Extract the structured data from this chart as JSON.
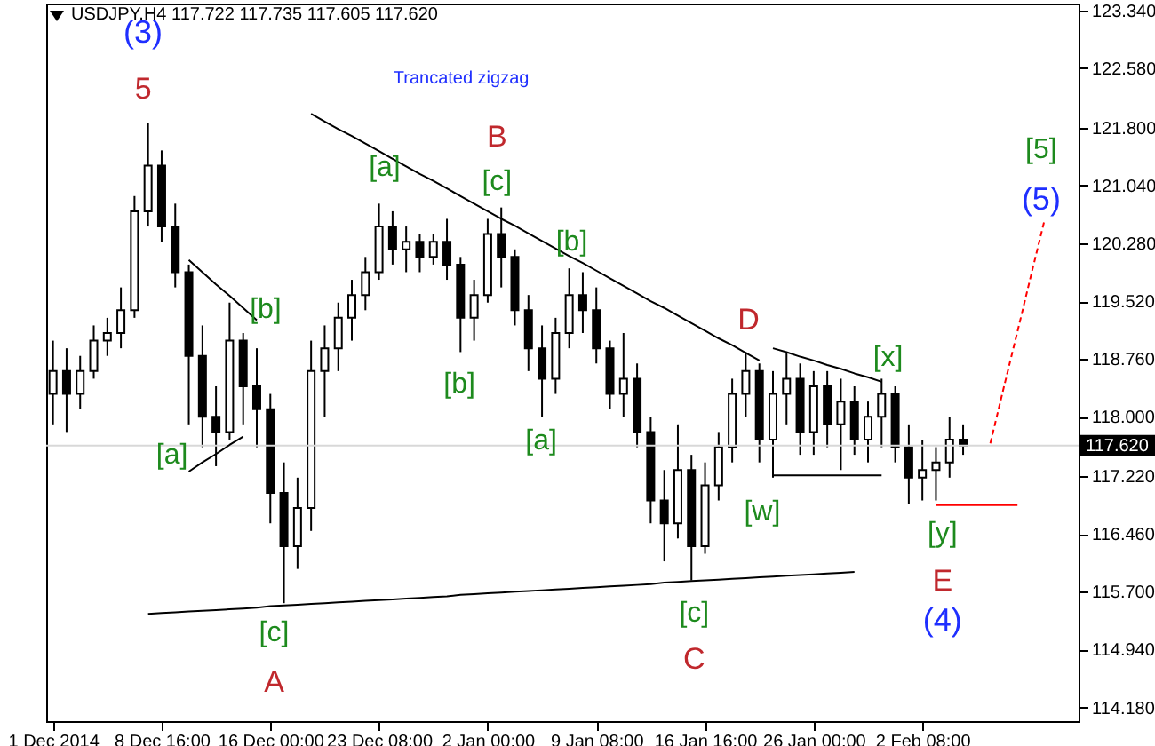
{
  "chart_data": {
    "type": "candlestick",
    "title": "USDJPY,H4 117.722 117.735 117.605 117.620",
    "annotations": [
      "Trancated zigzag",
      "[a]",
      "[b]",
      "[c]",
      "[a]",
      "[c]",
      "[b]",
      "[b]",
      "[a]",
      "[c]",
      "[w]",
      "[x]",
      "[y]",
      "[5]",
      "5",
      "B",
      "A",
      "C",
      "D",
      "E",
      "(3)",
      "(4)",
      "(5)"
    ],
    "categories": [
      "1 Dec 2014",
      null,
      null,
      null,
      null,
      null,
      null,
      null,
      "8 Dec 16:00",
      null,
      null,
      null,
      null,
      null,
      null,
      null,
      "16 Dec 00:00",
      null,
      null,
      null,
      null,
      null,
      null,
      null,
      "23 Dec 08:00",
      null,
      null,
      null,
      null,
      null,
      null,
      null,
      "2 Jan 00:00",
      null,
      null,
      null,
      null,
      null,
      null,
      null,
      "9 Jan 08:00",
      null,
      null,
      null,
      null,
      null,
      null,
      null,
      "16 Jan 16:00",
      null,
      null,
      null,
      null,
      null,
      null,
      null,
      "26 Jan 00:00",
      null,
      null,
      null,
      null,
      null,
      null,
      null,
      "2 Feb 08:00",
      null,
      null,
      null,
      null,
      null,
      null,
      null,
      null,
      null,
      null,
      null
    ],
    "ohlc": [
      [
        118.3,
        119.0,
        117.9,
        118.6
      ],
      [
        118.6,
        118.9,
        117.8,
        118.3
      ],
      [
        118.3,
        118.8,
        118.1,
        118.6
      ],
      [
        118.6,
        119.2,
        118.5,
        119.0
      ],
      [
        119.0,
        119.3,
        118.8,
        119.1
      ],
      [
        119.1,
        119.7,
        118.9,
        119.4
      ],
      [
        119.4,
        120.9,
        119.3,
        120.7
      ],
      [
        120.7,
        121.86,
        120.5,
        121.3
      ],
      [
        121.3,
        121.5,
        120.3,
        120.5
      ],
      [
        120.5,
        120.8,
        119.7,
        119.9
      ],
      [
        119.9,
        120.0,
        117.9,
        118.8
      ],
      [
        118.8,
        119.2,
        117.6,
        118.0
      ],
      [
        118.0,
        118.4,
        117.35,
        117.8
      ],
      [
        117.8,
        119.5,
        117.7,
        119.0
      ],
      [
        119.0,
        119.1,
        117.9,
        118.4
      ],
      [
        118.4,
        118.9,
        117.6,
        118.1
      ],
      [
        118.1,
        118.3,
        116.6,
        117.0
      ],
      [
        117.0,
        117.4,
        115.55,
        116.3
      ],
      [
        116.3,
        117.2,
        116.0,
        116.8
      ],
      [
        116.8,
        119.0,
        116.5,
        118.6
      ],
      [
        118.6,
        119.2,
        118.0,
        118.9
      ],
      [
        118.9,
        119.5,
        118.6,
        119.3
      ],
      [
        119.3,
        119.8,
        119.0,
        119.6
      ],
      [
        119.6,
        120.1,
        119.4,
        119.9
      ],
      [
        119.9,
        120.8,
        119.8,
        120.5
      ],
      [
        120.5,
        120.7,
        120.0,
        120.2
      ],
      [
        120.2,
        120.5,
        119.9,
        120.3
      ],
      [
        120.3,
        120.4,
        119.9,
        120.1
      ],
      [
        120.1,
        120.4,
        120.0,
        120.3
      ],
      [
        120.3,
        120.6,
        119.8,
        120.0
      ],
      [
        120.0,
        120.1,
        118.85,
        119.3
      ],
      [
        119.3,
        119.8,
        119.0,
        119.6
      ],
      [
        119.6,
        120.6,
        119.5,
        120.4
      ],
      [
        120.4,
        120.75,
        119.7,
        120.1
      ],
      [
        120.1,
        120.2,
        119.2,
        119.4
      ],
      [
        119.4,
        119.6,
        118.6,
        118.9
      ],
      [
        118.9,
        119.2,
        118.0,
        118.5
      ],
      [
        118.5,
        119.3,
        118.3,
        119.1
      ],
      [
        119.1,
        119.95,
        118.9,
        119.6
      ],
      [
        119.6,
        119.9,
        119.1,
        119.4
      ],
      [
        119.4,
        119.7,
        118.7,
        118.9
      ],
      [
        118.9,
        119.0,
        118.1,
        118.3
      ],
      [
        118.3,
        119.1,
        118.0,
        118.5
      ],
      [
        118.5,
        118.7,
        117.6,
        117.8
      ],
      [
        117.8,
        118.0,
        116.6,
        116.9
      ],
      [
        116.9,
        117.3,
        116.1,
        116.6
      ],
      [
        116.6,
        117.9,
        116.4,
        117.3
      ],
      [
        117.3,
        117.5,
        115.85,
        116.3
      ],
      [
        116.3,
        117.4,
        116.2,
        117.1
      ],
      [
        117.1,
        117.8,
        116.9,
        117.6
      ],
      [
        117.6,
        118.5,
        117.4,
        118.3
      ],
      [
        118.3,
        118.85,
        118.0,
        118.6
      ],
      [
        118.6,
        118.7,
        117.4,
        117.7
      ],
      [
        117.7,
        118.6,
        117.2,
        118.3
      ],
      [
        118.3,
        118.85,
        117.9,
        118.5
      ],
      [
        118.5,
        118.7,
        117.5,
        117.8
      ],
      [
        117.8,
        118.6,
        117.5,
        118.4
      ],
      [
        118.4,
        118.6,
        117.6,
        117.9
      ],
      [
        117.9,
        118.5,
        117.3,
        118.2
      ],
      [
        118.2,
        118.4,
        117.5,
        117.7
      ],
      [
        117.7,
        118.2,
        117.4,
        118.0
      ],
      [
        118.0,
        118.5,
        117.6,
        118.3
      ],
      [
        118.3,
        118.4,
        117.4,
        117.6
      ],
      [
        117.6,
        117.9,
        116.85,
        117.2
      ],
      [
        117.2,
        117.7,
        116.9,
        117.3
      ],
      [
        117.3,
        117.6,
        116.9,
        117.4
      ],
      [
        117.4,
        118.0,
        117.2,
        117.7
      ],
      [
        117.7,
        117.9,
        117.5,
        117.62
      ],
      null,
      null,
      null,
      null,
      null,
      null,
      null,
      null
    ],
    "ylim": [
      114.0,
      123.43
    ],
    "yticks": [
      {
        "value": 123.34,
        "label": "123.340"
      },
      {
        "value": 122.58,
        "label": "122.580"
      },
      {
        "value": 121.8,
        "label": "121.800"
      },
      {
        "value": 121.04,
        "label": "121.040"
      },
      {
        "value": 120.28,
        "label": "120.280"
      },
      {
        "value": 119.52,
        "label": "119.520"
      },
      {
        "value": 118.76,
        "label": "118.760"
      },
      {
        "value": 118.0,
        "label": "118.000"
      },
      {
        "value": 117.22,
        "label": "117.220"
      },
      {
        "value": 116.46,
        "label": "116.460"
      },
      {
        "value": 115.7,
        "label": "115.700"
      },
      {
        "value": 114.94,
        "label": "114.940"
      },
      {
        "value": 114.18,
        "label": "114.180"
      }
    ],
    "ref_lines": [
      {
        "axis": "y",
        "value": 117.62,
        "label": "117.620",
        "color": "#d8d8d8"
      }
    ],
    "series": [
      {
        "type": "line",
        "color": "#000000",
        "values": [
          null,
          null,
          null,
          null,
          null,
          null,
          null,
          null,
          null,
          null,
          null,
          null,
          null,
          null,
          null,
          null,
          null,
          null,
          null,
          121.98,
          121.88,
          121.78,
          121.69,
          121.59,
          121.49,
          121.39,
          121.29,
          121.19,
          121.1,
          121.0,
          120.9,
          120.8,
          120.7,
          120.6,
          120.51,
          120.41,
          120.31,
          120.21,
          120.11,
          120.02,
          119.92,
          119.82,
          119.72,
          119.62,
          119.52,
          119.43,
          119.33,
          119.23,
          119.13,
          119.03,
          118.94,
          118.84,
          118.74,
          null,
          null,
          null,
          null,
          null,
          null,
          null,
          null,
          null,
          null,
          null,
          null,
          null,
          null,
          null,
          null,
          null,
          null,
          null,
          null,
          null,
          null,
          null
        ]
      },
      {
        "type": "line",
        "color": "#000000",
        "values": [
          null,
          null,
          null,
          null,
          null,
          null,
          null,
          115.41,
          115.42,
          115.43,
          115.44,
          115.45,
          115.46,
          115.47,
          115.48,
          115.49,
          115.51,
          115.52,
          115.53,
          115.54,
          115.55,
          115.56,
          115.57,
          115.58,
          115.59,
          115.6,
          115.61,
          115.62,
          115.63,
          115.64,
          115.66,
          115.67,
          115.68,
          115.69,
          115.7,
          115.71,
          115.72,
          115.73,
          115.74,
          115.75,
          115.76,
          115.77,
          115.78,
          115.79,
          115.8,
          115.82,
          115.83,
          115.84,
          115.85,
          115.86,
          115.87,
          115.88,
          115.89,
          115.9,
          115.91,
          115.92,
          115.93,
          115.94,
          115.95,
          115.96,
          null,
          null,
          null,
          null,
          null,
          null,
          null,
          null,
          null,
          null,
          null,
          null,
          null,
          null,
          null,
          null
        ]
      },
      {
        "type": "line",
        "color": "#000000",
        "values": [
          null,
          null,
          null,
          null,
          null,
          null,
          null,
          null,
          null,
          null,
          120.06,
          119.9,
          119.74,
          119.59,
          119.43,
          119.27,
          null,
          null,
          null,
          null,
          null,
          null,
          null,
          null,
          null,
          null,
          null,
          null,
          null,
          null,
          null,
          null,
          null,
          null,
          null,
          null,
          null,
          null,
          null,
          null,
          null,
          null,
          null,
          null,
          null,
          null,
          null,
          null,
          null,
          null,
          null,
          null,
          null,
          null,
          null,
          null,
          null,
          null,
          null,
          null,
          null,
          null,
          null,
          null,
          null,
          null,
          null,
          null,
          null,
          null,
          null,
          null,
          null,
          null,
          null,
          null
        ]
      },
      {
        "type": "line",
        "color": "#000000",
        "values": [
          null,
          null,
          null,
          null,
          null,
          null,
          null,
          null,
          null,
          null,
          117.28,
          117.4,
          117.51,
          117.63,
          117.74,
          null,
          null,
          null,
          null,
          null,
          null,
          null,
          null,
          null,
          null,
          null,
          null,
          null,
          null,
          null,
          null,
          null,
          null,
          null,
          null,
          null,
          null,
          null,
          null,
          null,
          null,
          null,
          null,
          null,
          null,
          null,
          null,
          null,
          null,
          null,
          null,
          null,
          null,
          null,
          null,
          null,
          null,
          null,
          null,
          null,
          null,
          null,
          null,
          null,
          null,
          null,
          null,
          null,
          null,
          null,
          null,
          null,
          null,
          null,
          null,
          null
        ]
      },
      {
        "type": "line",
        "color": "#000000",
        "values": [
          null,
          null,
          null,
          null,
          null,
          null,
          null,
          null,
          null,
          null,
          null,
          null,
          null,
          null,
          null,
          null,
          null,
          null,
          null,
          null,
          null,
          null,
          null,
          null,
          null,
          null,
          null,
          null,
          null,
          null,
          null,
          null,
          null,
          null,
          null,
          null,
          null,
          null,
          null,
          null,
          null,
          null,
          null,
          null,
          null,
          null,
          null,
          null,
          null,
          null,
          null,
          null,
          null,
          118.9,
          118.85,
          118.79,
          118.74,
          118.68,
          118.63,
          118.57,
          118.52,
          118.46,
          null,
          null,
          null,
          null,
          null,
          null,
          null,
          null,
          null,
          null,
          null,
          null,
          null,
          null
        ]
      },
      {
        "type": "line",
        "color": "#000000",
        "values": [
          null,
          null,
          null,
          null,
          null,
          null,
          null,
          null,
          null,
          null,
          null,
          null,
          null,
          null,
          null,
          null,
          null,
          null,
          null,
          null,
          null,
          null,
          null,
          null,
          null,
          null,
          null,
          null,
          null,
          null,
          null,
          null,
          null,
          null,
          null,
          null,
          null,
          null,
          null,
          null,
          null,
          null,
          null,
          null,
          null,
          null,
          null,
          null,
          null,
          null,
          null,
          null,
          null,
          117.23,
          117.23,
          117.23,
          117.23,
          117.23,
          117.23,
          117.23,
          117.23,
          117.23,
          null,
          null,
          null,
          null,
          null,
          null,
          null,
          null,
          null,
          null,
          null,
          null,
          null,
          null
        ]
      },
      {
        "type": "line",
        "color": "#ff0000",
        "values": [
          null,
          null,
          null,
          null,
          null,
          null,
          null,
          null,
          null,
          null,
          null,
          null,
          null,
          null,
          null,
          null,
          null,
          null,
          null,
          null,
          null,
          null,
          null,
          null,
          null,
          null,
          null,
          null,
          null,
          null,
          null,
          null,
          null,
          null,
          null,
          null,
          null,
          null,
          null,
          null,
          null,
          null,
          null,
          null,
          null,
          null,
          null,
          null,
          null,
          null,
          null,
          null,
          null,
          null,
          null,
          null,
          null,
          null,
          null,
          null,
          null,
          null,
          null,
          null,
          null,
          116.84,
          116.84,
          116.84,
          116.84,
          116.84,
          116.84,
          116.84,
          null,
          null,
          null,
          null
        ]
      },
      {
        "type": "line",
        "color": "#ff0000",
        "line_style": "dashed",
        "values": [
          null,
          null,
          null,
          null,
          null,
          null,
          null,
          null,
          null,
          null,
          null,
          null,
          null,
          null,
          null,
          null,
          null,
          null,
          null,
          null,
          null,
          null,
          null,
          null,
          null,
          null,
          null,
          null,
          null,
          null,
          null,
          null,
          null,
          null,
          null,
          null,
          null,
          null,
          null,
          null,
          null,
          null,
          null,
          null,
          null,
          null,
          null,
          null,
          null,
          null,
          null,
          null,
          null,
          null,
          null,
          null,
          null,
          null,
          null,
          null,
          null,
          null,
          null,
          null,
          null,
          null,
          null,
          null,
          null,
          117.65,
          118.39,
          119.12,
          119.86,
          120.59,
          null,
          null
        ]
      }
    ]
  }
}
